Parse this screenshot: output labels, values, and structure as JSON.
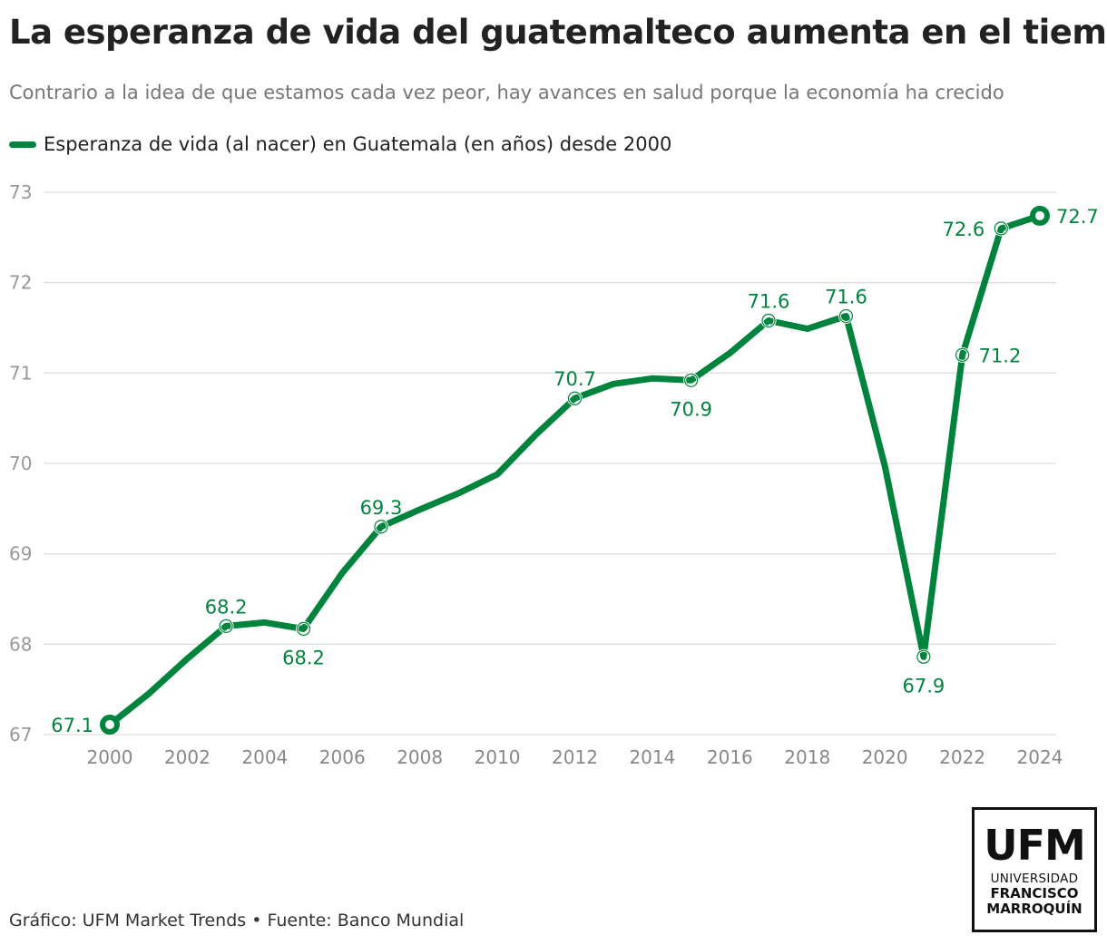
{
  "header": {
    "title": "La esperanza de vida del guatemalteco aumenta en el tiempo",
    "subtitle": "Contrario a la idea de que estamos cada vez peor, hay avances en salud porque la economía ha crecido"
  },
  "legend": {
    "label": "Esperanza de vida (al nacer) en Guatemala (en años) desde 2000"
  },
  "footer": {
    "text": "Gráfico: UFM Market Trends • Fuente: Banco Mundial"
  },
  "logo": {
    "main": "UFM",
    "line1": "UNIVERSIDAD",
    "line2": "FRANCISCO",
    "line3": "MARROQUÍN"
  },
  "colors": {
    "line": "#00843d",
    "grid": "#dddddd",
    "tick": "#999999"
  },
  "chart_data": {
    "type": "line",
    "xlim": [
      2000,
      2024
    ],
    "ylim": [
      67,
      73
    ],
    "x_ticks": [
      2000,
      2002,
      2004,
      2006,
      2008,
      2010,
      2012,
      2014,
      2016,
      2018,
      2020,
      2022,
      2024
    ],
    "y_ticks": [
      67,
      68,
      69,
      70,
      71,
      72,
      73
    ],
    "grid": true,
    "series": [
      {
        "x": [
          2000,
          2001,
          2002,
          2003,
          2004,
          2005,
          2006,
          2007,
          2008,
          2009,
          2010,
          2011,
          2012,
          2013,
          2014,
          2015,
          2016,
          2017,
          2018,
          2019,
          2020,
          2021,
          2022,
          2023,
          2024
        ],
        "y": [
          67.11,
          67.45,
          67.84,
          68.2,
          68.24,
          68.17,
          68.79,
          69.3,
          69.49,
          69.67,
          69.88,
          70.32,
          70.72,
          70.88,
          70.94,
          70.92,
          71.22,
          71.58,
          71.49,
          71.63,
          69.97,
          67.86,
          71.2,
          72.6,
          72.74
        ]
      }
    ],
    "annotations": [
      {
        "x": 2000,
        "y": 67.11,
        "label": "67.1",
        "pos": "left",
        "marker": "end"
      },
      {
        "x": 2003,
        "y": 68.2,
        "label": "68.2",
        "pos": "above",
        "marker": "ring"
      },
      {
        "x": 2005,
        "y": 68.17,
        "label": "68.2",
        "pos": "below",
        "marker": "ring"
      },
      {
        "x": 2007,
        "y": 69.3,
        "label": "69.3",
        "pos": "above",
        "marker": "ring"
      },
      {
        "x": 2012,
        "y": 70.72,
        "label": "70.7",
        "pos": "above",
        "marker": "ring"
      },
      {
        "x": 2015,
        "y": 70.92,
        "label": "70.9",
        "pos": "below",
        "marker": "ring"
      },
      {
        "x": 2017,
        "y": 71.58,
        "label": "71.6",
        "pos": "above",
        "marker": "ring"
      },
      {
        "x": 2019,
        "y": 71.63,
        "label": "71.6",
        "pos": "above",
        "marker": "ring"
      },
      {
        "x": 2021,
        "y": 67.86,
        "label": "67.9",
        "pos": "below",
        "marker": "ring"
      },
      {
        "x": 2022,
        "y": 71.2,
        "label": "71.2",
        "pos": "right",
        "marker": "ring"
      },
      {
        "x": 2023,
        "y": 72.6,
        "label": "72.6",
        "pos": "left",
        "marker": "ring"
      },
      {
        "x": 2024,
        "y": 72.74,
        "label": "72.7",
        "pos": "right",
        "marker": "end"
      }
    ]
  }
}
